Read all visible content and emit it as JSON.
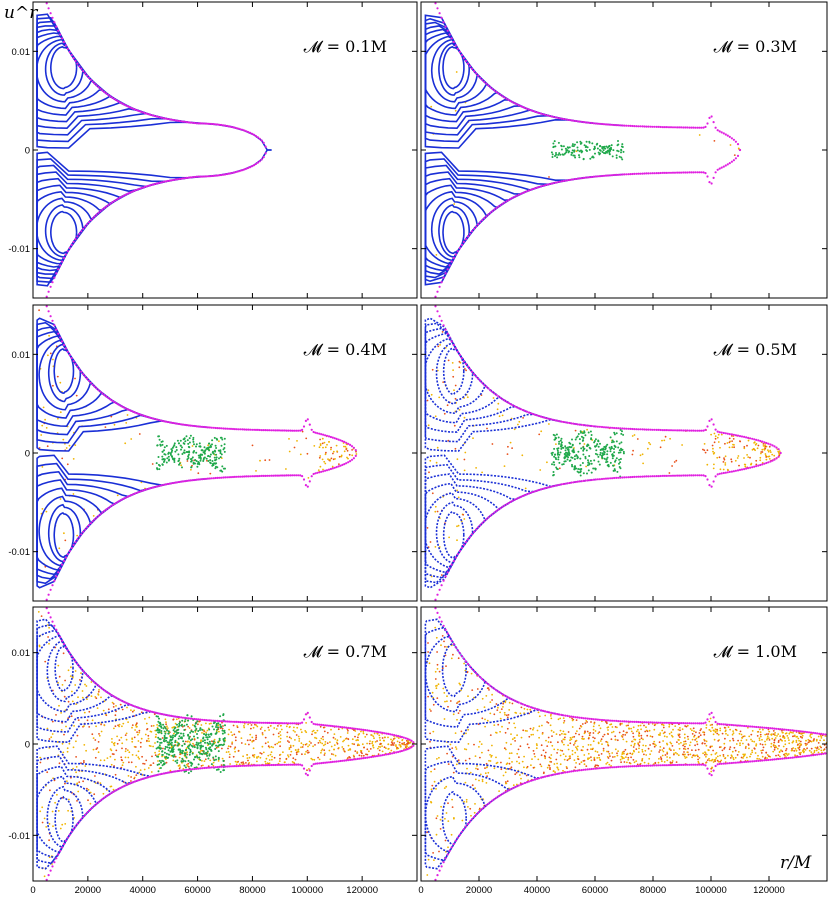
{
  "chart_data": {
    "type": "scatter",
    "description_type": "Poincaré surfaces of section",
    "xlabel": "r/M",
    "ylabel": "u^r",
    "xlim": [
      0,
      140000
    ],
    "ylim": [
      -0.015,
      0.015
    ],
    "x_ticks": [
      {
        "value": 0,
        "label": "0"
      },
      {
        "value": 20000,
        "label": "20000"
      },
      {
        "value": 40000,
        "label": "40000"
      },
      {
        "value": 60000,
        "label": "60000"
      },
      {
        "value": 80000,
        "label": "80000"
      },
      {
        "value": 100000,
        "label": "100000"
      },
      {
        "value": 120000,
        "label": "120000"
      }
    ],
    "y_ticks": [
      {
        "value": 0.01,
        "label": "0.01"
      },
      {
        "value": 0,
        "label": "0"
      },
      {
        "value": -0.01,
        "label": "-0.01"
      }
    ],
    "colors": {
      "regular_orbit": "#1a2fd6",
      "sticky_orbit": "#1fa84a",
      "chaotic_orbit_light": "#f0b400",
      "chaotic_orbit_dark": "#e8501a",
      "boundary_curve": "#e020e0",
      "frame": "#000000"
    },
    "panels": [
      {
        "title": "𝓜 = 0.1M",
        "mass": 0.1,
        "boundary_r_max": 85000,
        "has_bump": false,
        "chaos_level": 0
      },
      {
        "title": "𝓜 = 0.3M",
        "mass": 0.3,
        "boundary_r_max": 110000,
        "has_bump": true,
        "chaos_level": 0.05
      },
      {
        "title": "𝓜 = 0.4M",
        "mass": 0.4,
        "boundary_r_max": 118000,
        "has_bump": true,
        "chaos_level": 0.3
      },
      {
        "title": "𝓜 = 0.5M",
        "mass": 0.5,
        "boundary_r_max": 124000,
        "has_bump": true,
        "chaos_level": 0.45
      },
      {
        "title": "𝓜 = 0.7M",
        "mass": 0.7,
        "boundary_r_max": 139000,
        "has_bump": true,
        "chaos_level": 0.7
      },
      {
        "title": "𝓜 = 1.0M",
        "mass": 1.0,
        "boundary_r_max": 150000,
        "has_bump": true,
        "chaos_level": 0.95
      }
    ]
  }
}
